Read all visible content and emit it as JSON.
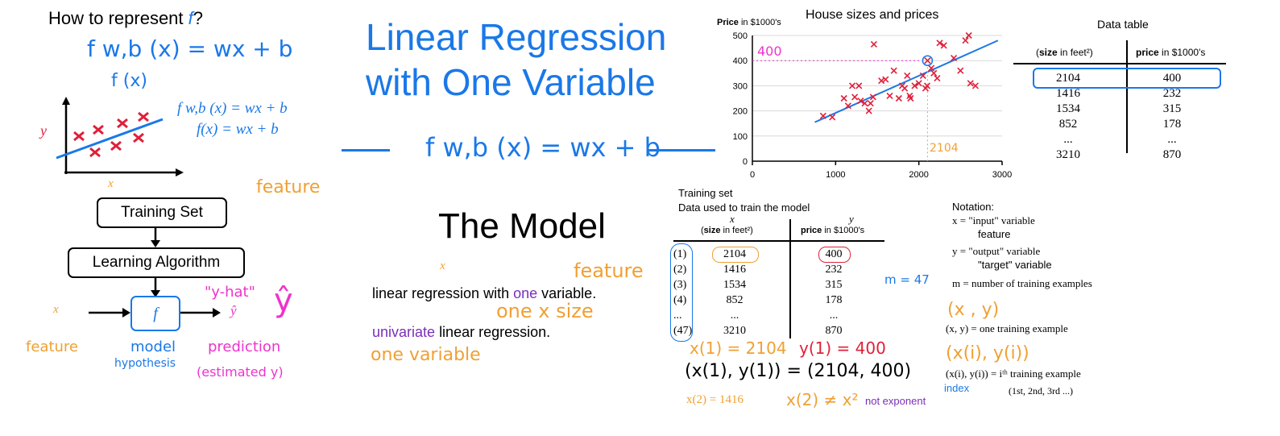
{
  "colors": {
    "blue": "#1a78e8",
    "orange": "#f0a033",
    "magenta": "#ee33cc",
    "purple": "#7a2fb8",
    "red": "#e0203a"
  },
  "left": {
    "question": "How to represent",
    "question_f": "f",
    "question_mark": "?",
    "handwritten_model": "f w,b (x) = wx + b",
    "handwritten_f": "f (x)",
    "typed_model": "f w,b (x) = wx + b",
    "typed_f": "f(x) = wx + b",
    "y_axis": "y",
    "x_axis": "x",
    "feature_note": "feature",
    "training_set": "Training Set",
    "learning_algorithm": "Learning Algorithm",
    "input_x": "x",
    "f_box": "f",
    "y_hat_quote": "\"y-hat\"",
    "y_hat": "ŷ",
    "y_hat_big": "ŷ",
    "feature_label": "feature",
    "model_label": "model",
    "hypothesis_label": "hypothesis",
    "prediction_label": "prediction",
    "estimated_label": "(estimated y)"
  },
  "center": {
    "title_line1": "Linear Regression",
    "title_line2": "with One Variable",
    "formula": "f w,b (x) = wx + b",
    "model_heading": "The Model",
    "x_note": "x",
    "feature_note": "feature",
    "line1_pre": "linear regression with",
    "line1_one": "one",
    "line1_post": "variable.",
    "one_x_size": "one x  size",
    "line2_uni": "univariate",
    "line2_post": "linear regression.",
    "one_variable": "one  variable"
  },
  "chart": {
    "price_bold": "Price",
    "price_unit": "in $1000's",
    "title": "House sizes and prices",
    "annot_400": "400",
    "annot_2104": "2104",
    "yticks": [
      "0",
      "100",
      "200",
      "300",
      "400",
      "500"
    ],
    "xticks": [
      "0",
      "1000",
      "2000",
      "3000"
    ]
  },
  "chart_data": {
    "type": "scatter",
    "title": "House sizes and prices",
    "xlabel": "",
    "ylabel": "Price in $1000's",
    "xlim": [
      0,
      3000
    ],
    "ylim": [
      0,
      500
    ],
    "marker": "x",
    "marker_color": "#e0203a",
    "fit_line": {
      "x": [
        750,
        2950
      ],
      "y": [
        155,
        480
      ],
      "color": "#1a78e8"
    },
    "points": [
      [
        850,
        180
      ],
      [
        960,
        175
      ],
      [
        1100,
        250
      ],
      [
        1150,
        220
      ],
      [
        1200,
        300
      ],
      [
        1230,
        255
      ],
      [
        1280,
        300
      ],
      [
        1300,
        240
      ],
      [
        1350,
        230
      ],
      [
        1400,
        200
      ],
      [
        1420,
        230
      ],
      [
        1450,
        255
      ],
      [
        1460,
        465
      ],
      [
        1550,
        320
      ],
      [
        1600,
        325
      ],
      [
        1650,
        260
      ],
      [
        1700,
        360
      ],
      [
        1760,
        250
      ],
      [
        1800,
        300
      ],
      [
        1830,
        290
      ],
      [
        1860,
        340
      ],
      [
        1890,
        260
      ],
      [
        1900,
        250
      ],
      [
        1950,
        300
      ],
      [
        2000,
        310
      ],
      [
        2050,
        340
      ],
      [
        2080,
        290
      ],
      [
        2104,
        400
      ],
      [
        2150,
        370
      ],
      [
        2180,
        350
      ],
      [
        2220,
        330
      ],
      [
        2250,
        470
      ],
      [
        2300,
        460
      ],
      [
        2420,
        410
      ],
      [
        2500,
        360
      ],
      [
        2560,
        480
      ],
      [
        2600,
        500
      ],
      [
        2620,
        310
      ],
      [
        2680,
        300
      ],
      [
        2100,
        300
      ]
    ]
  },
  "data_table": {
    "title": "Data table",
    "col1_bold": "size",
    "col1_unit": "in feet²",
    "col2_bold": "price",
    "col2_unit": "in $1000's",
    "rows": [
      [
        "2104",
        "400"
      ],
      [
        "1416",
        "232"
      ],
      [
        "1534",
        "315"
      ],
      [
        "852",
        "178"
      ],
      [
        "...",
        "..."
      ],
      [
        "3210",
        "870"
      ]
    ]
  },
  "training": {
    "title": "Training set",
    "subtitle": "Data used to train the model",
    "x": "x",
    "y": "y",
    "col1_bold": "size",
    "col1_unit": "in feet²",
    "col2_bold": "price",
    "col2_unit": "in $1000's",
    "index": [
      "(1)",
      "(2)",
      "(3)",
      "(4)",
      "...",
      "(47)"
    ],
    "sizes": [
      "2104",
      "1416",
      "1534",
      "852",
      "...",
      "3210"
    ],
    "prices": [
      "400",
      "232",
      "315",
      "178",
      "...",
      "870"
    ],
    "m_note": "m = 47",
    "x1": "x(1) = 2104",
    "y1": "y(1) = 400",
    "pair": "(x(1), y(1)) = (2104, 400)",
    "x2": "x(2) = 1416",
    "x2_neq": "x(2) ≠ x²",
    "not_exponent": "not exponent"
  },
  "notation": {
    "title": "Notation:",
    "x_line": "x = \"input\" variable",
    "x_sub": "feature",
    "y_line": "y = \"output\" variable",
    "y_sub": "\"target\" variable",
    "m_line": "m = number of training examples",
    "xy_hand": "(x , y)",
    "xy_line": "(x, y) = one training example",
    "xiyi_hand": "(x(i), y(i))",
    "xiyi_line": "(x(i), y(i)) = iᵗʰ training example",
    "index": "index",
    "ordinals": "(1st, 2nd, 3rd ...)"
  }
}
